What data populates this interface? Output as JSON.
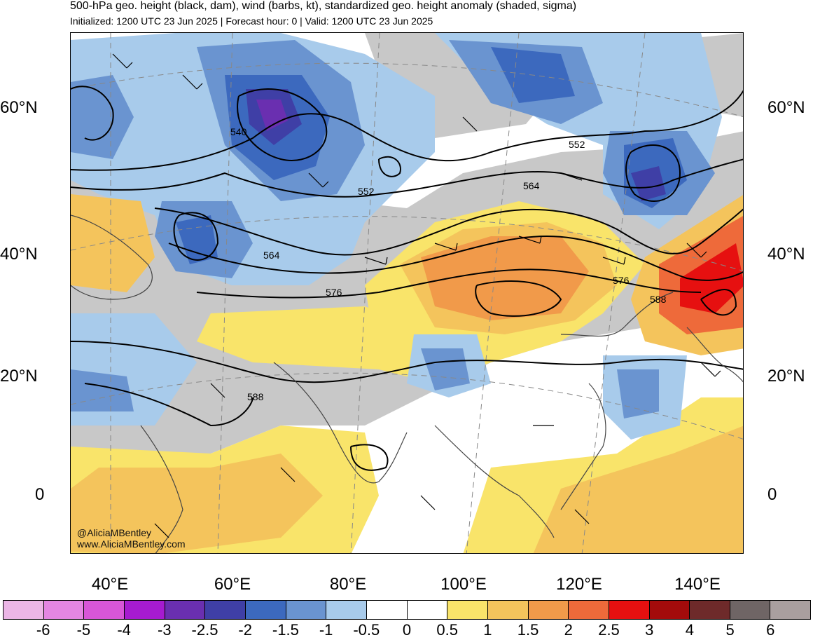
{
  "header": {
    "title": "500-hPa geo. height (black, dam), wind (barbs, kt), standardized geo. height anomaly (shaded, sigma)",
    "subtitle": "Initialized: 1200 UTC 23 Jun 2025 | Forecast hour: 0 | Valid: 1200 UTC 23 Jun 2025"
  },
  "axes": {
    "lat_labels": [
      "60°N",
      "40°N",
      "20°N",
      "0"
    ],
    "lon_labels": [
      "40°E",
      "60°E",
      "80°E",
      "100°E",
      "120°E",
      "140°E"
    ]
  },
  "contours": {
    "labels": [
      "540",
      "552",
      "552",
      "564",
      "564",
      "576",
      "576",
      "588",
      "588"
    ]
  },
  "credits": {
    "handle": "@AliciaMBentley",
    "url": "www.AliciaMBentley.com"
  },
  "colorbar": {
    "ticks": [
      "-6",
      "-5",
      "-4",
      "-3",
      "-2.5",
      "-2",
      "-1.5",
      "-1",
      "-0.5",
      "0",
      "0.5",
      "1",
      "1.5",
      "2",
      "2.5",
      "3",
      "4",
      "5",
      "6"
    ],
    "colors": [
      "#ecb6e6",
      "#e486e2",
      "#d856d8",
      "#a61bd0",
      "#6a2fb0",
      "#3f3fa6",
      "#3c69be",
      "#6a94d0",
      "#a8cbeb",
      "#ffffff",
      "#ffffff",
      "#f9e46a",
      "#f4c45c",
      "#f19a4a",
      "#ee6a3a",
      "#e61010",
      "#a30b0b",
      "#6e2a2a",
      "#6f6565",
      "#a99f9f"
    ]
  }
}
